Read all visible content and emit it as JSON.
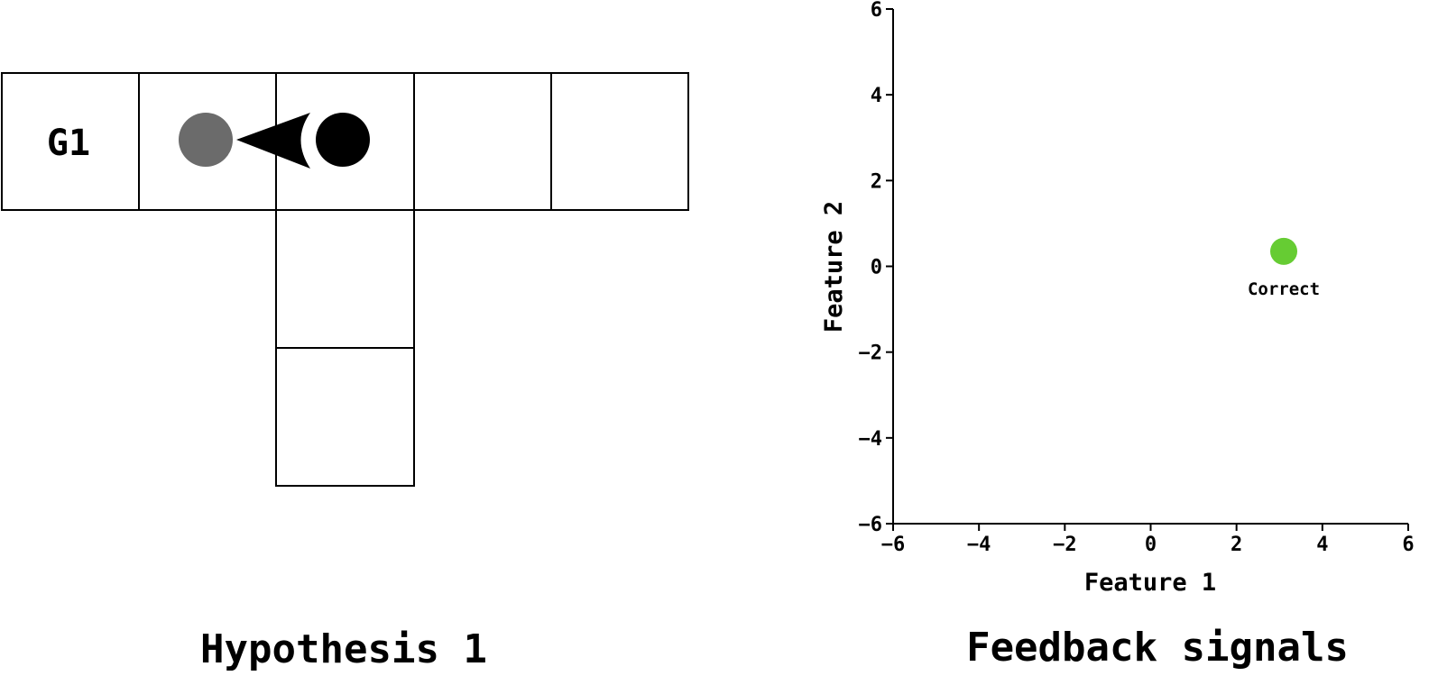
{
  "grid": {
    "goal_label": "G1",
    "caption": "Hypothesis 1",
    "colors": {
      "previous_position": "#6b6b6b",
      "agent": "#000000",
      "cell_stroke": "#000000"
    }
  },
  "chart_data": {
    "type": "scatter",
    "title": "Feedback signals",
    "xlabel": "Feature 1",
    "ylabel": "Feature 2",
    "xlim": [
      -6,
      6
    ],
    "ylim": [
      -6,
      6
    ],
    "xticks": [
      -6,
      -4,
      -2,
      0,
      2,
      4,
      6
    ],
    "yticks": [
      -6,
      -4,
      -2,
      0,
      2,
      4,
      6
    ],
    "xtick_labels": [
      "−6",
      "−4",
      "−2",
      "0",
      "2",
      "4",
      "6"
    ],
    "ytick_labels": [
      "−6",
      "−4",
      "−2",
      "0",
      "2",
      "4",
      "6"
    ],
    "grid": false,
    "points": [
      {
        "x": 3.1,
        "y": 0.35,
        "label": "Correct",
        "color": "#66cc33"
      }
    ]
  }
}
